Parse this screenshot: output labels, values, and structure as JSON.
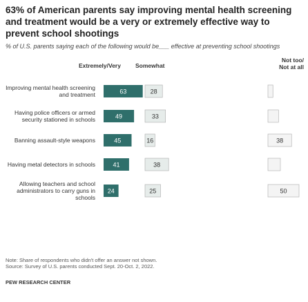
{
  "chart_data": {
    "type": "bar",
    "title": "63% of American parents say improving mental health screening and treatment would be a very or extremely effective way to prevent school shootings",
    "subtitle": "% of U.S. parents saying each of the following would be___ effective at preventing school shootings",
    "categories": [
      "Improving mental health screening and treatment",
      "Having police officers or armed security stationed in schools",
      "Banning assault-style weapons",
      "Having metal detectors in schools",
      "Allowing teachers and school administrators to carry guns in schools"
    ],
    "series": [
      {
        "name": "Extremely/Very",
        "color": "#2f6f6b",
        "values": [
          63,
          49,
          45,
          41,
          24
        ]
      },
      {
        "name": "Somewhat",
        "color": "#e6ecea",
        "values": [
          28,
          33,
          16,
          38,
          25
        ]
      },
      {
        "name": "Not too/ Not at all",
        "color": "#f4f4f4",
        "values": [
          8,
          17,
          38,
          20,
          50
        ],
        "value_labels": [
          null,
          null,
          "38",
          null,
          "50"
        ]
      }
    ],
    "note": "Note: Share of respondents who didn't offer an answer not shown.",
    "source": "Source: Survey of U.S. parents conducted Sept. 20-Oct. 2, 2022.",
    "footer": "PEW RESEARCH CENTER"
  }
}
